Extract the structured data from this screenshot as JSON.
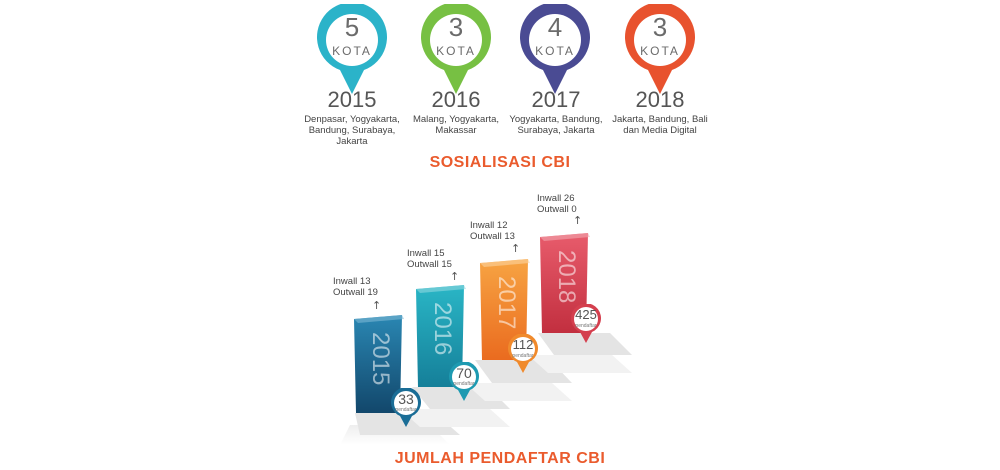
{
  "sosialisasi": {
    "heading": "SOSIALISASI CBI",
    "unit": "KOTA",
    "items": [
      {
        "count": "5",
        "year": "2015",
        "cities": "Denpasar, Yogyakarta, Bandung, Surabaya, Jakarta",
        "color": "#2bb3c9"
      },
      {
        "count": "3",
        "year": "2016",
        "cities": "Malang, Yogyakarta, Makassar",
        "color": "#77c043"
      },
      {
        "count": "4",
        "year": "2017",
        "cities": "Yogyakarta, Bandung, Surabaya, Jakarta",
        "color": "#4a4b93"
      },
      {
        "count": "3",
        "year": "2018",
        "cities": "Jakarta, Bandung, Bali dan Media Digital",
        "color": "#e8522e"
      }
    ]
  },
  "pendaftar": {
    "heading": "JUMLAH PENDAFTAR CBI",
    "unit": "pendaftar",
    "items": [
      {
        "year": "2015",
        "inwall": "Inwall 13",
        "outwall": "Outwall 19",
        "count": "33",
        "color": "#1a6d96"
      },
      {
        "year": "2016",
        "inwall": "Inwall 15",
        "outwall": "Outwall 15",
        "count": "70",
        "color": "#1e9ab1"
      },
      {
        "year": "2017",
        "inwall": "Inwall 12",
        "outwall": "Outwall 13",
        "count": "112",
        "color": "#f08a2c"
      },
      {
        "year": "2018",
        "inwall": "Inwall 26",
        "outwall": "Outwall 0",
        "count": "425",
        "color": "#d43f4e"
      }
    ]
  }
}
